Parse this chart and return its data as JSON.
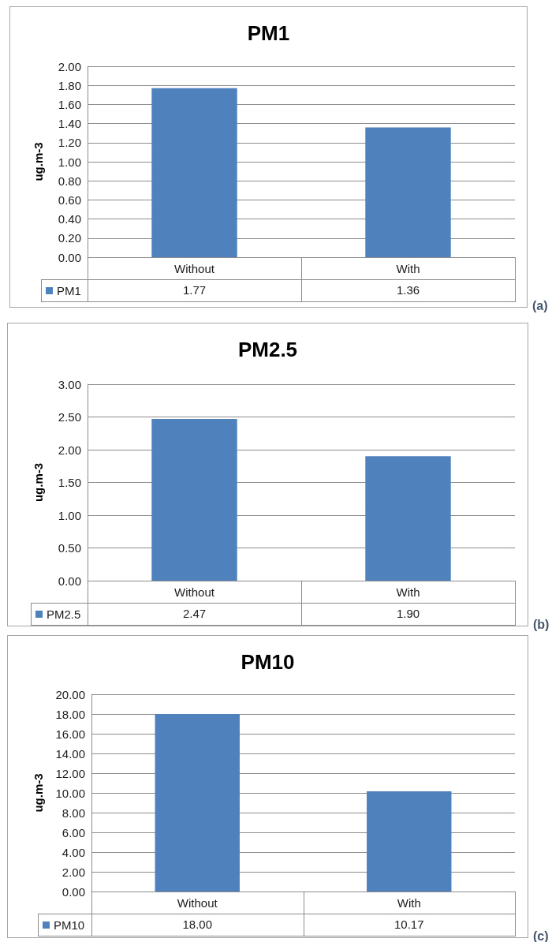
{
  "chart_data": [
    {
      "type": "bar",
      "title": "PM1",
      "ylabel": "ug.m-3",
      "categories": [
        "Without",
        "With"
      ],
      "series": [
        {
          "name": "PM1",
          "color": "#4f81bd",
          "values": [
            1.77,
            1.36
          ],
          "value_labels": [
            "1.77",
            "1.36"
          ]
        }
      ],
      "ylim": [
        0,
        2
      ],
      "yticks": [
        {
          "value": 0,
          "label": "0.00"
        },
        {
          "value": 0.2,
          "label": "0.20"
        },
        {
          "value": 0.4,
          "label": "0.40"
        },
        {
          "value": 0.6,
          "label": "0.60"
        },
        {
          "value": 0.8,
          "label": "0.80"
        },
        {
          "value": 1,
          "label": "1.00"
        },
        {
          "value": 1.2,
          "label": "1.20"
        },
        {
          "value": 1.4,
          "label": "1.40"
        },
        {
          "value": 1.6,
          "label": "1.60"
        },
        {
          "value": 1.8,
          "label": "1.80"
        },
        {
          "value": 2,
          "label": "2.00"
        }
      ],
      "grid": "y",
      "legend": "bottom left",
      "annotations": [
        "(a)"
      ]
    },
    {
      "type": "bar",
      "title": "PM2.5",
      "ylabel": "ug.m-3",
      "categories": [
        "Without",
        "With"
      ],
      "series": [
        {
          "name": "PM2.5",
          "color": "#4f81bd",
          "values": [
            2.47,
            1.9
          ],
          "value_labels": [
            "2.47",
            "1.90"
          ]
        }
      ],
      "ylim": [
        0,
        3
      ],
      "yticks": [
        {
          "value": 0,
          "label": "0.00"
        },
        {
          "value": 0.5,
          "label": "0.50"
        },
        {
          "value": 1,
          "label": "1.00"
        },
        {
          "value": 1.5,
          "label": "1.50"
        },
        {
          "value": 2,
          "label": "2.00"
        },
        {
          "value": 2.5,
          "label": "2.50"
        },
        {
          "value": 3,
          "label": "3.00"
        }
      ],
      "grid": "y",
      "legend": "bottom left",
      "annotations": [
        "(b)"
      ]
    },
    {
      "type": "bar",
      "title": "PM10",
      "ylabel": "ug.m-3",
      "categories": [
        "Without",
        "With"
      ],
      "series": [
        {
          "name": "PM10",
          "color": "#4f81bd",
          "values": [
            18,
            10.17
          ],
          "value_labels": [
            "18.00",
            "10.17"
          ]
        }
      ],
      "ylim": [
        0,
        20
      ],
      "yticks": [
        {
          "value": 0,
          "label": "0.00"
        },
        {
          "value": 2,
          "label": "2.00"
        },
        {
          "value": 4,
          "label": "4.00"
        },
        {
          "value": 6,
          "label": "6.00"
        },
        {
          "value": 8,
          "label": "8.00"
        },
        {
          "value": 10,
          "label": "10.00"
        },
        {
          "value": 12,
          "label": "12.00"
        },
        {
          "value": 14,
          "label": "14.00"
        },
        {
          "value": 16,
          "label": "16.00"
        },
        {
          "value": 18,
          "label": "18.00"
        },
        {
          "value": 20,
          "label": "20.00"
        }
      ],
      "grid": "y",
      "legend": "bottom left",
      "annotations": [
        "(c)"
      ]
    }
  ]
}
